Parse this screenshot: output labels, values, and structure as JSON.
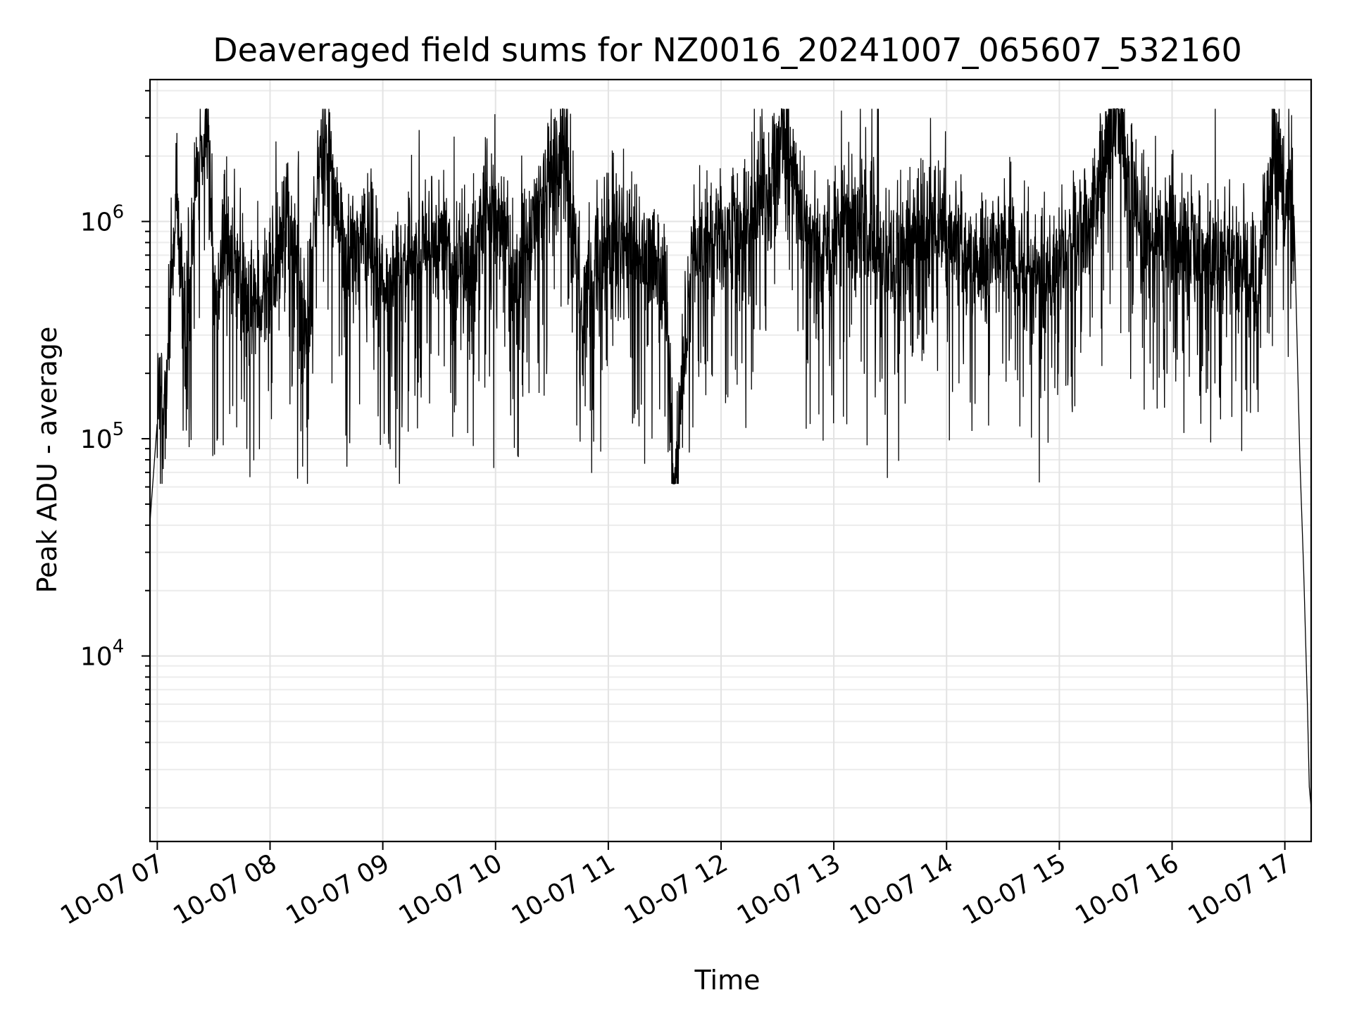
{
  "chart_data": {
    "type": "line",
    "title": "Deaveraged field sums for NZ0016_20241007_065607_532160",
    "xlabel": "Time",
    "ylabel": "Peak ADU - average",
    "yscale": "log",
    "grid": true,
    "line_color": "#000000",
    "x_range": [
      "2024-10-07 06:56:07",
      "2024-10-07 17:14:00"
    ],
    "ylim": [
      1400,
      4500000
    ],
    "x_ticks": [
      {
        "value": "2024-10-07 07:00",
        "label": "10-07 07"
      },
      {
        "value": "2024-10-07 08:00",
        "label": "10-07 08"
      },
      {
        "value": "2024-10-07 09:00",
        "label": "10-07 09"
      },
      {
        "value": "2024-10-07 10:00",
        "label": "10-07 10"
      },
      {
        "value": "2024-10-07 11:00",
        "label": "10-07 11"
      },
      {
        "value": "2024-10-07 12:00",
        "label": "10-07 12"
      },
      {
        "value": "2024-10-07 13:00",
        "label": "10-07 13"
      },
      {
        "value": "2024-10-07 14:00",
        "label": "10-07 14"
      },
      {
        "value": "2024-10-07 15:00",
        "label": "10-07 15"
      },
      {
        "value": "2024-10-07 16:00",
        "label": "10-07 16"
      },
      {
        "value": "2024-10-07 17:00",
        "label": "10-07 17"
      }
    ],
    "y_ticks": [
      {
        "value": 10000,
        "base": "10",
        "exp": "4"
      },
      {
        "value": 100000,
        "base": "10",
        "exp": "5"
      },
      {
        "value": 1000000,
        "base": "10",
        "exp": "6"
      }
    ],
    "series": [
      {
        "x": [
          "2024-10-07 06:56",
          "2024-10-07 07:00",
          "2024-10-07 07:05",
          "2024-10-07 07:10",
          "2024-10-07 07:15",
          "2024-10-07 07:20",
          "2024-10-07 07:27",
          "2024-10-07 07:30",
          "2024-10-07 07:40",
          "2024-10-07 07:50",
          "2024-10-07 08:00",
          "2024-10-07 08:10",
          "2024-10-07 08:20",
          "2024-10-07 08:28",
          "2024-10-07 08:40",
          "2024-10-07 08:50",
          "2024-10-07 09:00",
          "2024-10-07 09:15",
          "2024-10-07 09:30",
          "2024-10-07 09:45",
          "2024-10-07 09:55",
          "2024-10-07 10:10",
          "2024-10-07 10:20",
          "2024-10-07 10:36",
          "2024-10-07 10:45",
          "2024-10-07 11:00",
          "2024-10-07 11:15",
          "2024-10-07 11:30",
          "2024-10-07 11:35",
          "2024-10-07 11:45",
          "2024-10-07 12:00",
          "2024-10-07 12:15",
          "2024-10-07 12:34",
          "2024-10-07 12:45",
          "2024-10-07 13:00",
          "2024-10-07 13:15",
          "2024-10-07 13:30",
          "2024-10-07 13:45",
          "2024-10-07 14:00",
          "2024-10-07 14:15",
          "2024-10-07 14:30",
          "2024-10-07 14:45",
          "2024-10-07 15:00",
          "2024-10-07 15:15",
          "2024-10-07 15:30",
          "2024-10-07 15:45",
          "2024-10-07 16:00",
          "2024-10-07 16:15",
          "2024-10-07 16:30",
          "2024-10-07 16:45",
          "2024-10-07 16:55",
          "2024-10-07 17:00",
          "2024-10-07 17:05",
          "2024-10-07 17:08",
          "2024-10-07 17:10",
          "2024-10-07 17:12",
          "2024-10-07 17:13",
          "2024-10-07 17:14"
        ],
        "y": [
          40000,
          120000,
          200000,
          1200000,
          300000,
          1500000,
          3000000,
          500000,
          800000,
          400000,
          600000,
          1000000,
          300000,
          3100000,
          700000,
          900000,
          500000,
          700000,
          800000,
          600000,
          1200000,
          600000,
          900000,
          2800000,
          400000,
          900000,
          700000,
          600000,
          65000,
          800000,
          900000,
          1000000,
          2600000,
          900000,
          800000,
          1000000,
          700000,
          900000,
          1000000,
          600000,
          800000,
          600000,
          700000,
          1000000,
          3200000,
          800000,
          900000,
          700000,
          700000,
          500000,
          2700000,
          1100000,
          1000000,
          80000,
          25000,
          6000,
          2500,
          2000
        ]
      }
    ]
  }
}
